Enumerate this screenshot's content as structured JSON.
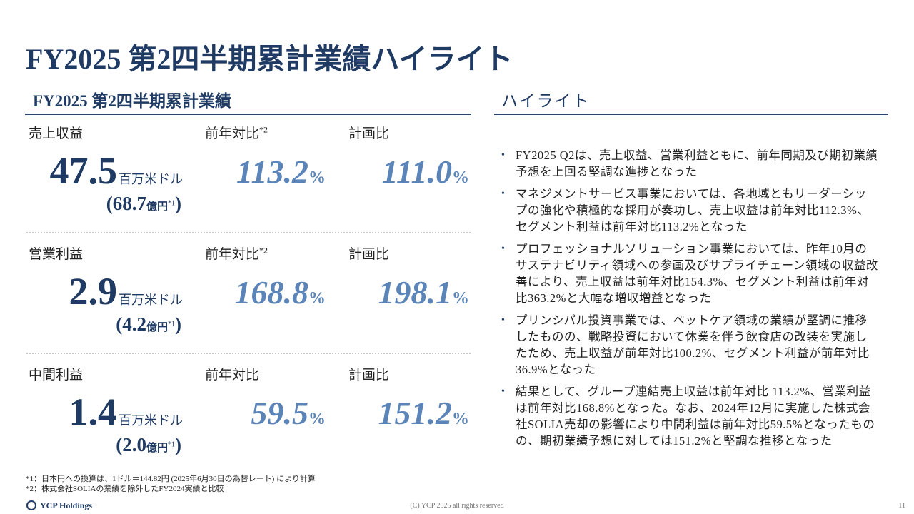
{
  "title": "FY2025 第2四半期累計業績ハイライト",
  "left": {
    "heading": "FY2025 第2四半期累計業績",
    "metrics": [
      {
        "label": "売上収益",
        "yoy_label": "前年対比",
        "yoy_note": "*2",
        "plan_label": "計画比",
        "value": "47.5",
        "unit": "百万米ドル",
        "jpy_value": "(68.7",
        "jpy_unit": "億円",
        "jpy_note": "*1",
        "jpy_close": ")",
        "yoy": "113.2",
        "yoy_unit": "%",
        "plan": "111.0",
        "plan_unit": "%"
      },
      {
        "label": "営業利益",
        "yoy_label": "前年対比",
        "yoy_note": "*2",
        "plan_label": "計画比",
        "value": "2.9",
        "unit": "百万米ドル",
        "jpy_value": "(4.2",
        "jpy_unit": "億円",
        "jpy_note": "*1",
        "jpy_close": ")",
        "yoy": "168.8",
        "yoy_unit": "%",
        "plan": "198.1",
        "plan_unit": "%"
      },
      {
        "label": "中間利益",
        "yoy_label": "前年対比",
        "plan_label": "計画比",
        "value": "1.4",
        "unit": "百万米ドル",
        "jpy_value": "(2.0",
        "jpy_unit": "億円",
        "jpy_note": "*1",
        "jpy_close": ")",
        "yoy": "59.5",
        "yoy_unit": "%",
        "plan": "151.2",
        "plan_unit": "%"
      }
    ]
  },
  "right": {
    "heading": "ハイライト",
    "bullets": [
      "FY2025 Q2は、売上収益、営業利益ともに、前年同期及び期初業績予想を上回る堅調な進捗となった",
      "マネジメントサービス事業においては、各地域ともリーダーシップの強化や積極的な採用が奏功し、売上収益は前年対比112.3%、セグメント利益は前年対比113.2%となった",
      "プロフェッショナルソリューション事業においては、昨年10月のサステナビリティ領域への参画及びサプライチェーン領域の収益改善により、売上収益は前年対比154.3%、セグメント利益は前年対比363.2%と大幅な増収増益となった",
      "プリンシパル投資事業では、ペットケア領域の業績が堅調に推移したものの、戦略投資において休業を伴う飲食店の改装を実施したため、売上収益が前年対比100.2%、セグメント利益が前年対比36.9%となった",
      "結果として、グループ連結売上収益は前年対比 113.2%、営業利益は前年対比168.8%となった。なお、2024年12月に実施した株式会社SOLIA売却の影響により中間利益は前年対比59.5%となったものの、期初業績予想に対しては151.2%と堅調な推移となった"
    ]
  },
  "footnotes": [
    "*1：日本円への換算は、1ドル＝144.82円 (2025年6月30日の為替レート) により計算",
    "*2：株式会社SOLIAの業績を除外したFY2024実績と比較"
  ],
  "footer": {
    "logo": "YCP Holdings",
    "copyright": "(C) YCP 2025 all rights reserved",
    "page": "11"
  }
}
